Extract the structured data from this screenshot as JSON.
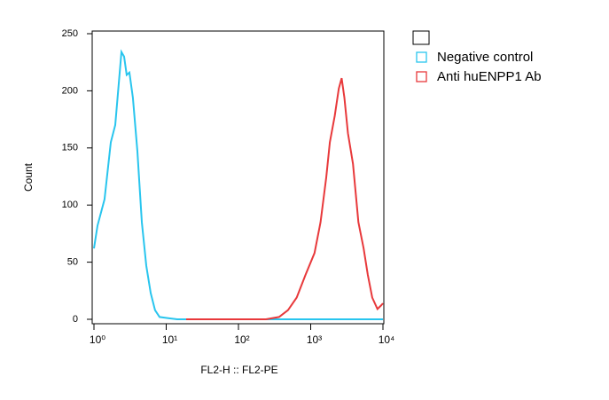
{
  "chart_data": {
    "type": "line",
    "x_label": "FL2-H :: FL2-PE",
    "y_label": "Count",
    "x_log": true,
    "xlim": [
      1,
      10000
    ],
    "xticks": [
      {
        "value": 1,
        "label": "10⁰"
      },
      {
        "value": 10,
        "label": "10¹"
      },
      {
        "value": 100,
        "label": "10²"
      },
      {
        "value": 1000,
        "label": "10³"
      },
      {
        "value": 10000,
        "label": "10⁴"
      }
    ],
    "ylim": [
      0,
      250
    ],
    "yticks": [
      0,
      50,
      100,
      150,
      200,
      250
    ],
    "series": [
      {
        "name": "Negative control",
        "color": "#29c5ee",
        "x": [
          1,
          1.12,
          1.4,
          1.71,
          1.97,
          2.4,
          2.61,
          2.84,
          3.1,
          3.46,
          3.99,
          4.6,
          5.3,
          6.1,
          7.0,
          8.1,
          10.7,
          14.2,
          240,
          10000
        ],
        "values": [
          62,
          82,
          105,
          155,
          170,
          234,
          230,
          214,
          216,
          194,
          147,
          85,
          47,
          23,
          8,
          2,
          1,
          0,
          0,
          0
        ]
      },
      {
        "name": "Anti huENPP1 Ab",
        "color": "#e8393b",
        "x": [
          18.9,
          240,
          365,
          485,
          640,
          850,
          1130,
          1370,
          1640,
          1840,
          2150,
          2450,
          2680,
          2930,
          3280,
          3850,
          4570,
          5400,
          6160,
          7100,
          8400,
          9400,
          10000
        ],
        "values": [
          0,
          0,
          2,
          8,
          19,
          39,
          58,
          85,
          124,
          155,
          178,
          202,
          211,
          194,
          163,
          136,
          85,
          62,
          39,
          19,
          9,
          12,
          14
        ]
      }
    ]
  }
}
